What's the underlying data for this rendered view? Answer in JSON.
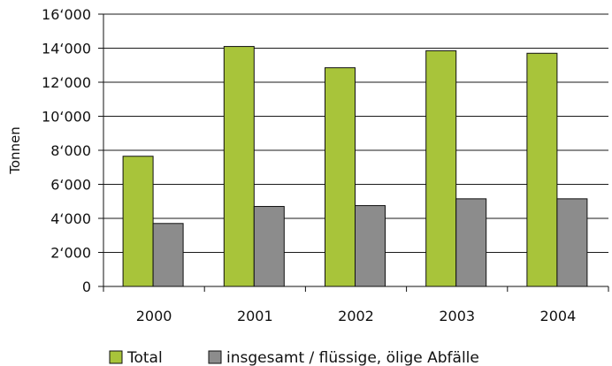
{
  "chart_data": {
    "type": "bar",
    "title": "",
    "xlabel": "",
    "ylabel": "Tonnen",
    "ylim": [
      0,
      16000
    ],
    "yticks": [
      0,
      2000,
      4000,
      6000,
      8000,
      10000,
      12000,
      14000,
      16000
    ],
    "ytick_labels": [
      "0",
      "2‘000",
      "4‘000",
      "6‘000",
      "8‘000",
      "10‘000",
      "12‘000",
      "14‘000",
      "16‘000"
    ],
    "grid": true,
    "legend_position": "bottom",
    "categories": [
      "2000",
      "2001",
      "2002",
      "2003",
      "2004"
    ],
    "series": [
      {
        "name": "Total",
        "color": "#a8c43a",
        "values": [
          7650,
          14100,
          12850,
          13850,
          13700
        ]
      },
      {
        "name": "insgesamt / flüssige, ölige Abfälle",
        "color": "#8c8c8c",
        "values": [
          3700,
          4700,
          4750,
          5150,
          5150
        ]
      }
    ]
  }
}
